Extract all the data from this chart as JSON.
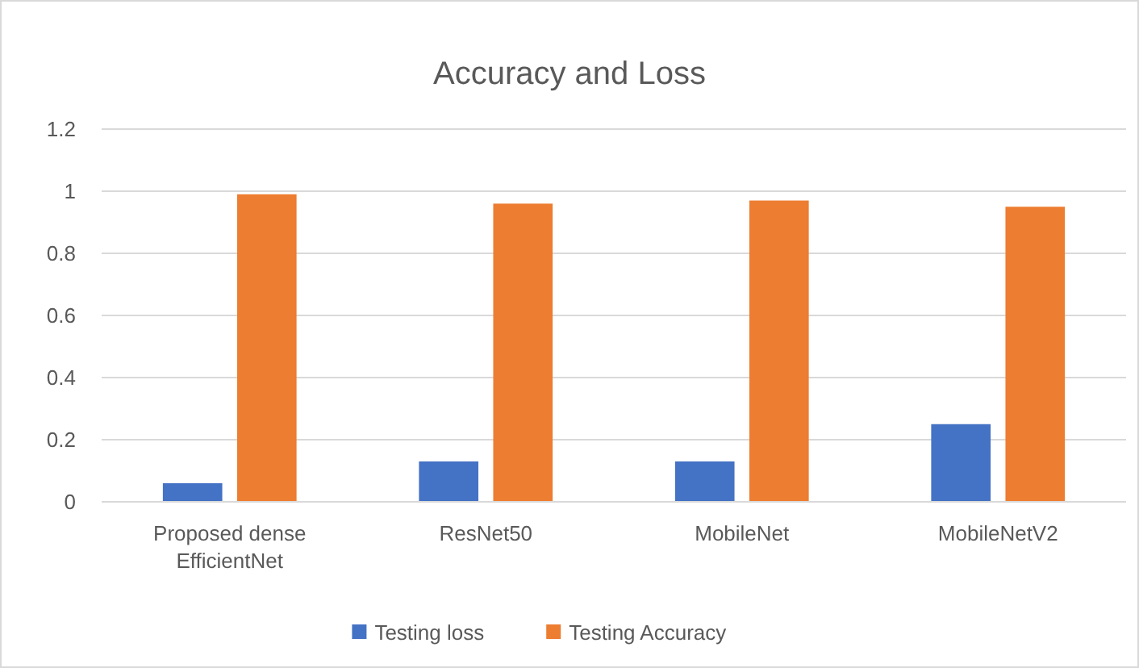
{
  "chart_data": {
    "type": "bar",
    "title": "Accuracy and Loss",
    "categories": [
      "Proposed dense EfficientNet",
      "ResNet50",
      "MobileNet",
      "MobileNetV2"
    ],
    "series": [
      {
        "name": "Testing loss",
        "color": "#4472c4",
        "values": [
          0.06,
          0.13,
          0.13,
          0.25
        ]
      },
      {
        "name": "Testing Accuracy",
        "color": "#ed7d31",
        "values": [
          0.99,
          0.96,
          0.97,
          0.95
        ]
      }
    ],
    "ylim": [
      0,
      1.2
    ],
    "yticks": [
      0,
      0.2,
      0.4,
      0.6,
      0.8,
      1,
      1.2
    ],
    "grid": "y",
    "legend": "bottom"
  }
}
